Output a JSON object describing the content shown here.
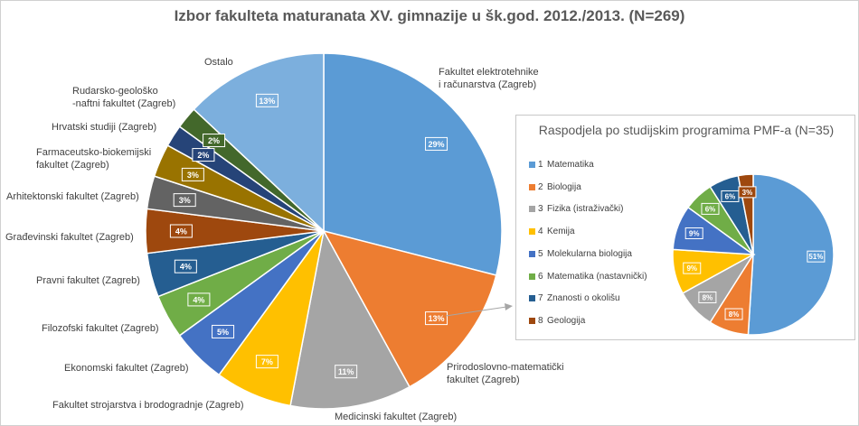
{
  "chart_data": [
    {
      "type": "pie",
      "title": "Izbor fakulteta maturanata XV. gimnazije u šk.god. 2012./2013. (N=269)",
      "slices": [
        {
          "label": "Fakultet elektrotehnike i računarstva (Zagreb)",
          "value": 29,
          "text": "29%",
          "color": "#5b9bd5"
        },
        {
          "label": "Prirodoslovno-matematički fakultet (Zagreb)",
          "value": 13,
          "text": "13%",
          "color": "#ed7d31"
        },
        {
          "label": "Medicinski fakultet (Zagreb)",
          "value": 11,
          "text": "11%",
          "color": "#a5a5a5"
        },
        {
          "label": "Fakultet strojarstva i brodogradnje (Zagreb)",
          "value": 7,
          "text": "7%",
          "color": "#ffc000"
        },
        {
          "label": "Ekonomski fakultet (Zagreb)",
          "value": 5,
          "text": "5%",
          "color": "#4472c4"
        },
        {
          "label": "Filozofski fakultet (Zagreb)",
          "value": 4,
          "text": "4%",
          "color": "#70ad47"
        },
        {
          "label": "Pravni fakultet (Zagreb)",
          "value": 4,
          "text": "4%",
          "color": "#255e91"
        },
        {
          "label": "Građevinski fakultet (Zagreb)",
          "value": 4,
          "text": "4%",
          "color": "#9e480e"
        },
        {
          "label": "Arhitektonski fakultet (Zagreb)",
          "value": 3,
          "text": "3%",
          "color": "#636363"
        },
        {
          "label": "Farmaceutsko-biokemijski fakultet (Zagreb)",
          "value": 3,
          "text": "3%",
          "color": "#997300"
        },
        {
          "label": "Hrvatski studiji (Zagreb)",
          "value": 2,
          "text": "2%",
          "color": "#264478"
        },
        {
          "label": "Rudarsko-geološko -naftni fakultet (Zagreb)",
          "value": 2,
          "text": "2%",
          "color": "#43682b"
        },
        {
          "label": "Ostalo",
          "value": 13,
          "text": "13%",
          "color": "#7cafdd"
        }
      ]
    },
    {
      "type": "pie",
      "title": "Raspodjela po studijskim programima PMF-a (N=35)",
      "slices": [
        {
          "num": "1",
          "label": "Matematika",
          "value": 51,
          "text": "51%",
          "color": "#5b9bd5"
        },
        {
          "num": "2",
          "label": "Biologija",
          "value": 8,
          "text": "8%",
          "color": "#ed7d31"
        },
        {
          "num": "3",
          "label": "Fizika (istraživački)",
          "value": 8,
          "text": "8%",
          "color": "#a5a5a5"
        },
        {
          "num": "4",
          "label": "Kemija",
          "value": 9,
          "text": "9%",
          "color": "#ffc000"
        },
        {
          "num": "5",
          "label": "Molekularna biologija",
          "value": 9,
          "text": "9%",
          "color": "#4472c4"
        },
        {
          "num": "6",
          "label": "Matematika (nastavnički)",
          "value": 6,
          "text": "6%",
          "color": "#70ad47"
        },
        {
          "num": "7",
          "label": "Znanosti o okolišu",
          "value": 6,
          "text": "6%",
          "color": "#255e91"
        },
        {
          "num": "8",
          "label": "Geologija",
          "value": 3,
          "text": "3%",
          "color": "#9e480e"
        }
      ]
    }
  ]
}
